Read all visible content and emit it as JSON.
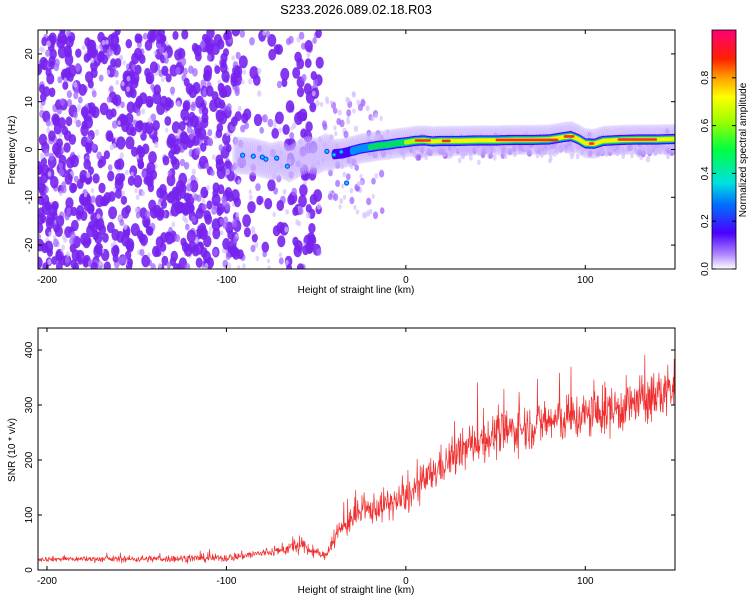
{
  "title": "S233.2026.089.02.18.R03",
  "colors": {
    "signal": "#ff2a2a",
    "snr_line": "#f03030",
    "speckle": "#7722ee",
    "axis": "#000000"
  },
  "chart_data": [
    {
      "type": "heatmap",
      "title": "S233.2026.089.02.18.R03",
      "xlabel": "Height of straight line (km)",
      "ylabel": "Frequency (Hz)",
      "xlim": [
        -205,
        150
      ],
      "ylim": [
        -25,
        25
      ],
      "xticks": [
        -200,
        -100,
        0,
        100
      ],
      "xtick_labels": [
        "-200",
        "-100",
        "0",
        "100"
      ],
      "yticks": [
        -20,
        -10,
        0,
        10,
        20
      ],
      "ytick_labels": [
        "-20",
        "-10",
        "0",
        "10",
        "20"
      ],
      "colorbar": {
        "label": "Normalized spectral amplitude",
        "range": [
          0,
          1
        ],
        "ticks": [
          0.0,
          0.2,
          0.4,
          0.6,
          0.8
        ],
        "tick_labels": [
          "0.0",
          "0.2",
          "0.4",
          "0.6",
          "0.8"
        ]
      },
      "signal_trace": {
        "height_km": [
          -95,
          -85,
          -80,
          -75,
          -70,
          -65,
          -55,
          -50,
          -45,
          -40,
          -35,
          -30,
          -25,
          -20,
          -15,
          -10,
          -5,
          0,
          5,
          10,
          15,
          20,
          30,
          40,
          50,
          60,
          70,
          80,
          88,
          92,
          96,
          100,
          105,
          110,
          120,
          130,
          140,
          150
        ],
        "frequency_hz": [
          -1.2,
          -1.5,
          -2.0,
          -2.5,
          -2.0,
          -3.0,
          -1.0,
          -1.5,
          -0.5,
          -1.0,
          -0.8,
          -0.3,
          0.2,
          0.5,
          0.8,
          1.0,
          1.3,
          1.5,
          1.8,
          1.9,
          1.7,
          1.8,
          1.8,
          1.9,
          1.9,
          2.0,
          2.0,
          2.1,
          2.6,
          2.8,
          2.2,
          1.3,
          1.2,
          1.8,
          2.0,
          2.1,
          2.1,
          2.2
        ]
      }
    },
    {
      "type": "line",
      "xlabel": "Height of straight line (km)",
      "ylabel": "SNR (10 * v/v)",
      "xlim": [
        -205,
        150
      ],
      "ylim": [
        0,
        440
      ],
      "xticks": [
        -200,
        -100,
        0,
        100
      ],
      "xtick_labels": [
        "-200",
        "-100",
        "0",
        "100"
      ],
      "yticks": [
        0,
        100,
        200,
        300,
        400
      ],
      "ytick_labels": [
        "0",
        "100",
        "200",
        "300",
        "400"
      ],
      "trend": {
        "height_km": [
          -205,
          -150,
          -100,
          -70,
          -60,
          -45,
          -40,
          -30,
          -20,
          0,
          20,
          40,
          60,
          80,
          100,
          120,
          140,
          150
        ],
        "snr": [
          20,
          20,
          22,
          35,
          45,
          25,
          60,
          95,
          110,
          130,
          190,
          235,
          255,
          270,
          280,
          295,
          315,
          335
        ]
      },
      "noise_amplitude": {
        "height_km": [
          -205,
          -70,
          -60,
          -45,
          -40,
          0,
          40,
          100,
          150
        ],
        "snr": [
          8,
          15,
          30,
          10,
          40,
          55,
          70,
          80,
          85
        ]
      }
    }
  ]
}
